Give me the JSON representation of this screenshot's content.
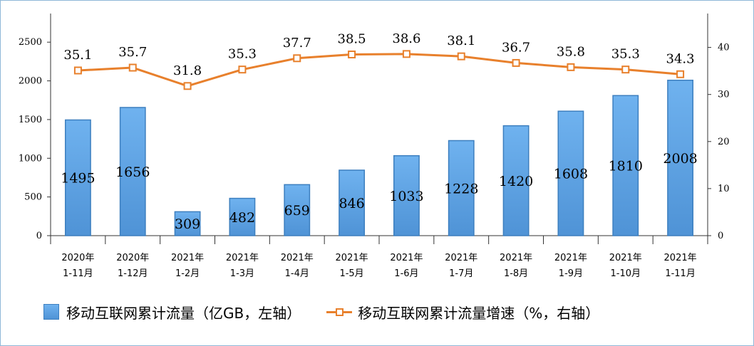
{
  "chart_data": {
    "type": "bar",
    "categories": [
      [
        "2020年",
        "1-11月"
      ],
      [
        "2020年",
        "1-12月"
      ],
      [
        "2021年",
        "1-2月"
      ],
      [
        "2021年",
        "1-3月"
      ],
      [
        "2021年",
        "1-4月"
      ],
      [
        "2021年",
        "1-5月"
      ],
      [
        "2021年",
        "1-6月"
      ],
      [
        "2021年",
        "1-7月"
      ],
      [
        "2021年",
        "1-8月"
      ],
      [
        "2021年",
        "1-9月"
      ],
      [
        "2021年",
        "1-10月"
      ],
      [
        "2021年",
        "1-11月"
      ]
    ],
    "series": [
      {
        "name": "移动互联网累计流量（亿GB，左轴）",
        "type": "bar",
        "axis": "left",
        "values": [
          1495,
          1656,
          309,
          482,
          659,
          846,
          1033,
          1228,
          1420,
          1608,
          1810,
          2008
        ]
      },
      {
        "name": "移动互联网累计流量增速（%，右轴）",
        "type": "line",
        "axis": "right",
        "values": [
          35.1,
          35.7,
          31.8,
          35.3,
          37.7,
          38.5,
          38.6,
          38.1,
          36.7,
          35.8,
          35.3,
          34.3
        ]
      }
    ],
    "y_left": {
      "ticks": [
        0,
        500,
        1000,
        1500,
        2000,
        2500
      ],
      "range": [
        0,
        2870
      ]
    },
    "y_right": {
      "ticks": [
        0,
        10,
        20,
        30,
        40
      ],
      "range": [
        0,
        47.2
      ]
    },
    "grid": false,
    "legend_position": "bottom",
    "colors": {
      "bar": "#5aa0e4",
      "bar_edge": "#3d7fbf",
      "line": "#e8802c"
    }
  }
}
